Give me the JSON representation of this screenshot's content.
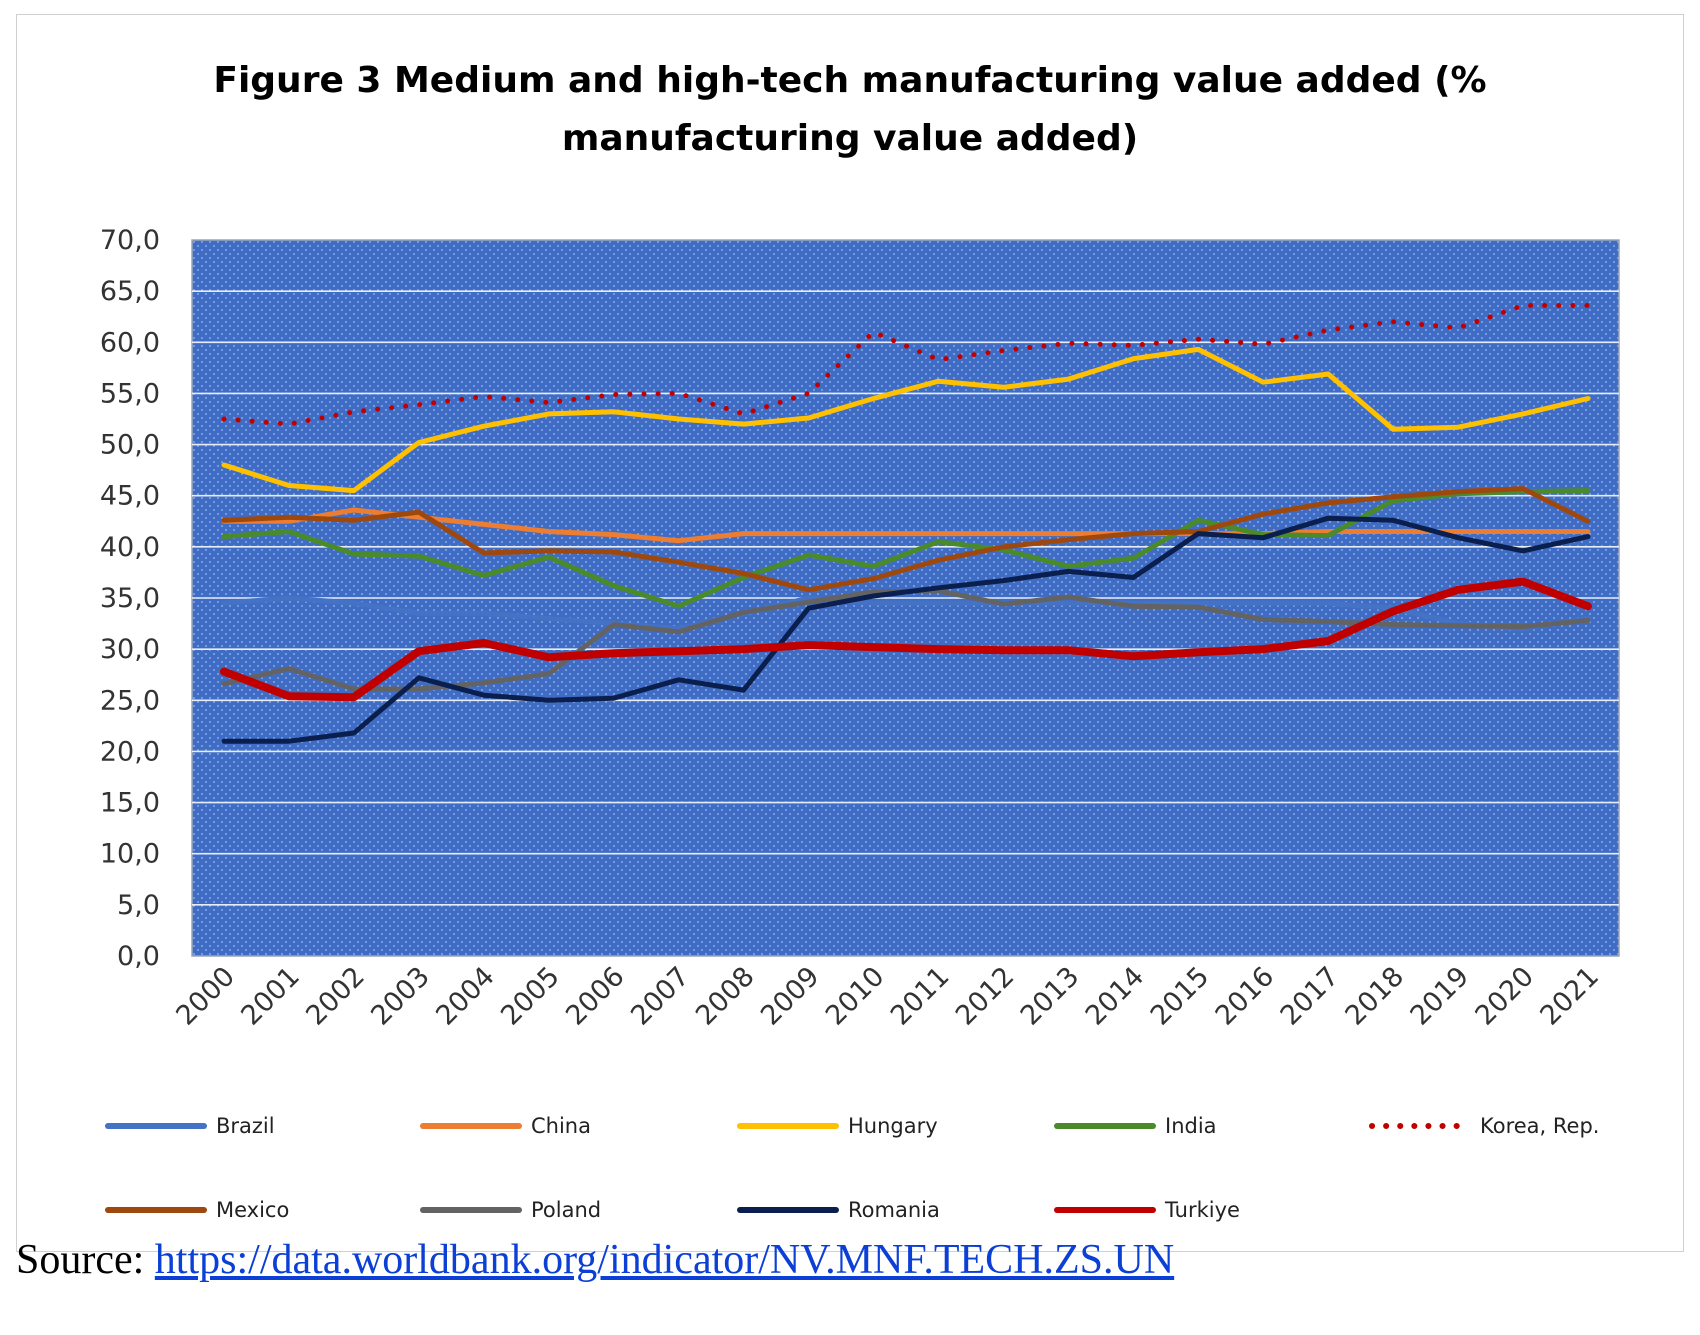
{
  "chart_data": {
    "type": "line",
    "title_line1": "Figure 3 Medium and high-tech manufacturing value added (%",
    "title_line2": "manufacturing value added)",
    "categories": [
      "2000",
      "2001",
      "2002",
      "2003",
      "2004",
      "2005",
      "2006",
      "2007",
      "2008",
      "2009",
      "2010",
      "2011",
      "2012",
      "2013",
      "2014",
      "2015",
      "2016",
      "2017",
      "2018",
      "2019",
      "2020",
      "2021"
    ],
    "y_ticks": [
      "0,0",
      "5,0",
      "10,0",
      "15,0",
      "20,0",
      "25,0",
      "30,0",
      "35,0",
      "40,0",
      "45,0",
      "50,0",
      "55,0",
      "60,0",
      "65,0",
      "70,0"
    ],
    "ylim": [
      0,
      70
    ],
    "grid": true,
    "plot_background": "#3f6dc5",
    "legend_position": "bottom",
    "series": [
      {
        "name": "Brazil",
        "color": "#4472c4",
        "style": "solid",
        "values": [
          34.5,
          35.0,
          34.5,
          33.5,
          33.5,
          33.0,
          32.5,
          32.0,
          33.5,
          35.0,
          34.5,
          34.5,
          34.5,
          34.5,
          34.5,
          34.5,
          34.5,
          34.5,
          34.0,
          32.5,
          32.0,
          33.0
        ]
      },
      {
        "name": "China",
        "color": "#ed7d31",
        "style": "solid",
        "values": [
          42.5,
          42.5,
          43.6,
          42.9,
          42.2,
          41.5,
          41.2,
          40.6,
          41.3,
          41.3,
          41.3,
          41.3,
          41.3,
          41.3,
          41.3,
          41.3,
          41.3,
          41.5,
          41.5,
          41.5,
          41.5,
          41.5
        ]
      },
      {
        "name": "Hungary",
        "color": "#ffc000",
        "style": "solid",
        "values": [
          48.0,
          46.0,
          45.5,
          50.2,
          51.8,
          53.0,
          53.2,
          52.5,
          52.0,
          52.6,
          54.5,
          56.2,
          55.6,
          56.4,
          58.4,
          59.3,
          56.1,
          56.9,
          51.5,
          51.7,
          53.0,
          54.5
        ]
      },
      {
        "name": "India",
        "color": "#4a8a2a",
        "style": "solid",
        "values": [
          41.0,
          41.5,
          39.3,
          39.1,
          37.2,
          39.0,
          36.2,
          34.2,
          37.0,
          39.2,
          38.1,
          40.5,
          39.7,
          38.1,
          38.9,
          42.6,
          41.2,
          41.1,
          44.5,
          45.2,
          45.4,
          45.5
        ]
      },
      {
        "name": "Korea, Rep.",
        "color": "#c00000",
        "style": "dotted",
        "values": [
          52.5,
          52.0,
          53.2,
          53.9,
          54.7,
          54.1,
          54.9,
          55.0,
          53.0,
          55.0,
          61.0,
          58.3,
          59.2,
          59.9,
          59.7,
          60.3,
          59.8,
          61.2,
          62.0,
          61.4,
          63.6,
          63.6
        ]
      },
      {
        "name": "Mexico",
        "color": "#9e480e",
        "style": "solid",
        "values": [
          42.6,
          42.9,
          42.6,
          43.4,
          39.4,
          39.6,
          39.5,
          38.5,
          37.4,
          35.8,
          36.9,
          38.7,
          40.0,
          40.7,
          41.3,
          41.5,
          43.2,
          44.3,
          44.9,
          45.4,
          45.7,
          42.5
        ]
      },
      {
        "name": "Poland",
        "color": "#636363",
        "style": "solid",
        "values": [
          26.6,
          28.1,
          26.1,
          26.1,
          26.7,
          27.6,
          32.4,
          31.7,
          33.6,
          34.6,
          35.6,
          35.7,
          34.4,
          35.1,
          34.2,
          34.1,
          32.9,
          32.7,
          32.4,
          32.3,
          32.2,
          32.8
        ]
      },
      {
        "name": "Romania",
        "color": "#0a1f4e",
        "style": "solid",
        "values": [
          21.0,
          21.0,
          21.8,
          27.2,
          25.5,
          25.0,
          25.2,
          27.0,
          26.0,
          34.0,
          35.2,
          36.0,
          36.7,
          37.6,
          37.0,
          41.3,
          40.9,
          42.8,
          42.6,
          40.9,
          39.6,
          41.0
        ]
      },
      {
        "name": "Turkiye",
        "color": "#c00000",
        "style": "thick",
        "values": [
          27.8,
          25.4,
          25.3,
          29.8,
          30.6,
          29.2,
          29.6,
          29.8,
          30.0,
          30.4,
          30.2,
          30.0,
          29.9,
          29.9,
          29.3,
          29.7,
          30.0,
          30.8,
          33.7,
          35.8,
          36.6,
          34.2
        ]
      }
    ]
  },
  "source": {
    "label": "Source: ",
    "url_text": "https://data.worldbank.org/indicator/NV.MNF.TECH.ZS.UN"
  }
}
